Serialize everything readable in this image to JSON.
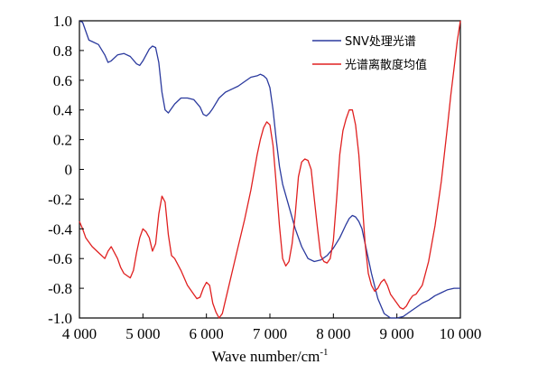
{
  "chart_data": {
    "type": "line",
    "title": "",
    "xlabel": "Wave number/cm",
    "xlabel_sup": "-1",
    "ylabel": "",
    "xlim": [
      4000,
      10000
    ],
    "ylim": [
      -1.0,
      1.0
    ],
    "xticks": [
      4000,
      5000,
      6000,
      7000,
      8000,
      9000,
      10000
    ],
    "xtick_labels": [
      "4 000",
      "5 000",
      "6 000",
      "7 000",
      "8 000",
      "9 000",
      "10 000"
    ],
    "yticks": [
      1.0,
      0.8,
      0.6,
      0.4,
      0.2,
      0,
      -0.2,
      -0.4,
      -0.6,
      -0.8,
      -1.0
    ],
    "ytick_labels": [
      "1.0",
      "0.8",
      "0.6",
      "0.4",
      "0.2",
      "0",
      "-0.2",
      "-0.4",
      "-0.6",
      "-0.8",
      "-1.0"
    ],
    "grid": false,
    "legend_position": "top-right",
    "series": [
      {
        "name": "SNV处理光谱",
        "color": "#2b3a9e",
        "x": [
          4000,
          4050,
          4100,
          4150,
          4200,
          4300,
          4400,
          4450,
          4500,
          4600,
          4700,
          4800,
          4900,
          4950,
          5000,
          5100,
          5150,
          5200,
          5250,
          5300,
          5350,
          5400,
          5500,
          5600,
          5700,
          5800,
          5900,
          5950,
          6000,
          6050,
          6100,
          6200,
          6300,
          6400,
          6500,
          6600,
          6700,
          6800,
          6850,
          6900,
          6950,
          7000,
          7050,
          7100,
          7150,
          7200,
          7300,
          7400,
          7500,
          7600,
          7700,
          7800,
          7900,
          8000,
          8100,
          8200,
          8250,
          8300,
          8350,
          8400,
          8450,
          8500,
          8600,
          8700,
          8800,
          8900,
          9000,
          9100,
          9200,
          9300,
          9400,
          9500,
          9600,
          9700,
          9800,
          9900,
          10000
        ],
        "y": [
          1.0,
          0.99,
          0.93,
          0.87,
          0.86,
          0.84,
          0.77,
          0.72,
          0.73,
          0.77,
          0.78,
          0.76,
          0.71,
          0.7,
          0.73,
          0.81,
          0.83,
          0.82,
          0.72,
          0.52,
          0.4,
          0.38,
          0.44,
          0.48,
          0.48,
          0.47,
          0.42,
          0.37,
          0.36,
          0.38,
          0.41,
          0.48,
          0.52,
          0.54,
          0.56,
          0.59,
          0.62,
          0.63,
          0.64,
          0.63,
          0.61,
          0.55,
          0.4,
          0.2,
          0.02,
          -0.1,
          -0.25,
          -0.4,
          -0.52,
          -0.6,
          -0.62,
          -0.61,
          -0.58,
          -0.53,
          -0.46,
          -0.37,
          -0.33,
          -0.31,
          -0.32,
          -0.35,
          -0.4,
          -0.5,
          -0.7,
          -0.87,
          -0.97,
          -1.0,
          -1.0,
          -0.99,
          -0.96,
          -0.93,
          -0.9,
          -0.88,
          -0.85,
          -0.83,
          -0.81,
          -0.8,
          -0.8
        ]
      },
      {
        "name": "光谱离散度均值",
        "color": "#e02020",
        "x": [
          4000,
          4050,
          4100,
          4200,
          4300,
          4400,
          4450,
          4500,
          4550,
          4600,
          4650,
          4700,
          4800,
          4850,
          4900,
          4950,
          5000,
          5050,
          5100,
          5150,
          5200,
          5250,
          5300,
          5350,
          5400,
          5450,
          5500,
          5600,
          5700,
          5800,
          5850,
          5900,
          5950,
          6000,
          6050,
          6100,
          6150,
          6200,
          6250,
          6300,
          6400,
          6500,
          6600,
          6700,
          6750,
          6800,
          6850,
          6900,
          6950,
          7000,
          7050,
          7100,
          7150,
          7200,
          7250,
          7300,
          7350,
          7400,
          7450,
          7500,
          7550,
          7600,
          7650,
          7700,
          7750,
          7800,
          7850,
          7900,
          7950,
          8000,
          8050,
          8100,
          8150,
          8200,
          8250,
          8300,
          8350,
          8400,
          8450,
          8500,
          8550,
          8600,
          8650,
          8700,
          8750,
          8800,
          8850,
          8900,
          8950,
          9000,
          9050,
          9100,
          9150,
          9200,
          9250,
          9300,
          9400,
          9500,
          9600,
          9700,
          9800,
          9850,
          9900,
          9950,
          10000
        ],
        "y": [
          -0.35,
          -0.4,
          -0.46,
          -0.52,
          -0.56,
          -0.6,
          -0.55,
          -0.52,
          -0.56,
          -0.6,
          -0.66,
          -0.7,
          -0.73,
          -0.68,
          -0.56,
          -0.46,
          -0.4,
          -0.42,
          -0.46,
          -0.55,
          -0.5,
          -0.3,
          -0.18,
          -0.22,
          -0.44,
          -0.58,
          -0.6,
          -0.68,
          -0.78,
          -0.84,
          -0.87,
          -0.86,
          -0.8,
          -0.76,
          -0.78,
          -0.9,
          -0.96,
          -1.0,
          -0.97,
          -0.88,
          -0.7,
          -0.52,
          -0.34,
          -0.14,
          -0.02,
          0.1,
          0.2,
          0.28,
          0.32,
          0.3,
          0.16,
          -0.1,
          -0.38,
          -0.6,
          -0.65,
          -0.62,
          -0.5,
          -0.3,
          -0.05,
          0.05,
          0.07,
          0.06,
          0.0,
          -0.2,
          -0.4,
          -0.58,
          -0.62,
          -0.63,
          -0.6,
          -0.48,
          -0.2,
          0.1,
          0.26,
          0.34,
          0.4,
          0.4,
          0.3,
          0.1,
          -0.2,
          -0.5,
          -0.7,
          -0.78,
          -0.82,
          -0.8,
          -0.76,
          -0.74,
          -0.78,
          -0.84,
          -0.87,
          -0.9,
          -0.93,
          -0.94,
          -0.92,
          -0.88,
          -0.85,
          -0.84,
          -0.78,
          -0.62,
          -0.38,
          -0.08,
          0.3,
          0.5,
          0.68,
          0.86,
          1.0
        ]
      }
    ]
  }
}
